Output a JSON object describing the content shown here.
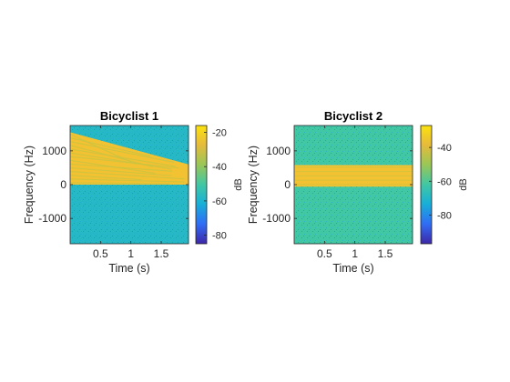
{
  "chart_data": [
    {
      "type": "heatmap",
      "title": "Bicyclist 1",
      "xlabel": "Time (s)",
      "ylabel": "Frequency (Hz)",
      "xlim": [
        0,
        1.95
      ],
      "ylim": [
        -1750,
        1750
      ],
      "xticks": [
        0.5,
        1,
        1.5
      ],
      "xtick_labels": [
        "0.5",
        "1",
        "1.5"
      ],
      "yticks": [
        1000,
        0,
        -1000
      ],
      "ytick_labels": [
        "1000",
        "0",
        "-1000"
      ],
      "colorbar": {
        "label": "dB",
        "clim": [
          -85,
          -16
        ],
        "ticks": [
          -20,
          -40,
          -60,
          -80
        ],
        "tick_labels": [
          "-20",
          "-40",
          "-60",
          "-80"
        ]
      },
      "colormap": [
        "#3e26a8",
        "#2f6ef6",
        "#17b0d6",
        "#41c7a4",
        "#9ac656",
        "#e7bb3a",
        "#fbe20f"
      ],
      "background_db": -58,
      "signal": {
        "kind": "diagonal_band",
        "upper_edge_start_hz": 1550,
        "upper_edge_end_hz": 600,
        "lower_edge_hz": 0,
        "level_db": -30,
        "band_color": "#f2c232",
        "stripe_color": "#c9c441"
      }
    },
    {
      "type": "heatmap",
      "title": "Bicyclist 2",
      "xlabel": "Time (s)",
      "ylabel": "Frequency (Hz)",
      "xlim": [
        0,
        1.95
      ],
      "ylim": [
        -1750,
        1750
      ],
      "xticks": [
        0.5,
        1,
        1.5
      ],
      "xtick_labels": [
        "0.5",
        "1",
        "1.5"
      ],
      "yticks": [
        1000,
        0,
        -1000
      ],
      "ytick_labels": [
        "1000",
        "0",
        "-1000"
      ],
      "colorbar": {
        "label": "dB",
        "clim": [
          -97,
          -27
        ],
        "ticks": [
          -40,
          -60,
          -80
        ],
        "tick_labels": [
          "-40",
          "-60",
          "-80"
        ]
      },
      "colormap": [
        "#3e26a8",
        "#2f6ef6",
        "#17b0d6",
        "#41c7a4",
        "#9ac656",
        "#e7bb3a",
        "#fbe20f"
      ],
      "background_db": -62,
      "signal": {
        "kind": "horizontal_band",
        "upper_edge_hz": 580,
        "lower_edge_hz": -60,
        "level_db": -38,
        "band_color": "#f2c232",
        "stripe_color": "#c9c441"
      }
    }
  ]
}
